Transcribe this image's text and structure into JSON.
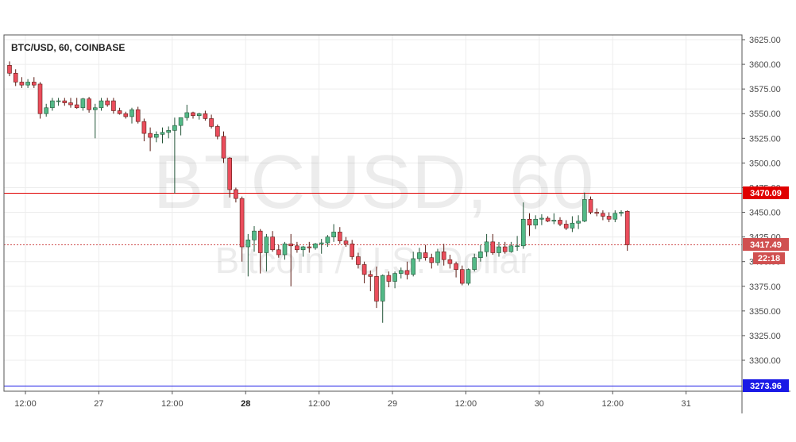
{
  "chart_data": {
    "type": "candlestick",
    "title": "BTC/USD, 60, COINBASE",
    "watermark": {
      "main": "BTCUSD, 60",
      "sub": "Bitcoin / U.S. Dollar"
    },
    "y_ticks": [
      3300,
      3325,
      3350,
      3375,
      3400,
      3425,
      3450,
      3475,
      3500,
      3525,
      3550,
      3575,
      3600,
      3625
    ],
    "y_tick_labels": [
      "3300.00",
      "3325.00",
      "3350.00",
      "3375.00",
      "3400.00",
      "3425.00",
      "3450.00",
      "3475.00",
      "3500.00",
      "3525.00",
      "3550.00",
      "3575.00",
      "3600.00",
      "3625.00"
    ],
    "ylim": [
      3270,
      3628
    ],
    "x_labels": [
      {
        "label": "12:00",
        "bar": 2.6,
        "bold": false
      },
      {
        "label": "27",
        "bar": 14.6,
        "bold": false
      },
      {
        "label": "12:00",
        "bar": 26.6,
        "bold": false
      },
      {
        "label": "28",
        "bar": 38.6,
        "bold": true
      },
      {
        "label": "12:00",
        "bar": 50.6,
        "bold": false
      },
      {
        "label": "29",
        "bar": 62.6,
        "bold": false
      },
      {
        "label": "12:00",
        "bar": 74.6,
        "bold": false
      },
      {
        "label": "30",
        "bar": 86.6,
        "bold": false
      },
      {
        "label": "12:00",
        "bar": 98.6,
        "bold": false
      },
      {
        "label": "31",
        "bar": 110.6,
        "bold": false
      }
    ],
    "bar_range": [
      0,
      119
    ],
    "colors": {
      "up": "#53b987",
      "down": "#eb4d5c",
      "up_border": "#225437",
      "down_border": "#5b1a13",
      "grid": "#ececec",
      "border": "#555555"
    },
    "horizontal_lines": [
      {
        "value": 3470.09,
        "label": "3470.09",
        "color": "#e00000",
        "style": "solid"
      },
      {
        "value": 3273.96,
        "label": "3273.96",
        "color": "#1a1ae6",
        "style": "solid"
      },
      {
        "value": 3417.49,
        "label": "3417.49",
        "color": "#d05050",
        "style": "dotted",
        "timer": "22:18"
      }
    ],
    "candles": [
      [
        3599,
        3603,
        3588,
        3591
      ],
      [
        3591,
        3595,
        3578,
        3582
      ],
      [
        3582,
        3587,
        3576,
        3579
      ],
      [
        3579,
        3585,
        3576,
        3582
      ],
      [
        3582,
        3587,
        3576,
        3579
      ],
      [
        3580,
        3582,
        3545,
        3550
      ],
      [
        3550,
        3560,
        3547,
        3556
      ],
      [
        3556,
        3566,
        3553,
        3563
      ],
      [
        3563,
        3566,
        3558,
        3563
      ],
      [
        3563,
        3566,
        3558,
        3561
      ],
      [
        3561,
        3566,
        3556,
        3559
      ],
      [
        3559,
        3566,
        3555,
        3556
      ],
      [
        3556,
        3566,
        3553,
        3565
      ],
      [
        3565,
        3567,
        3551,
        3554
      ],
      [
        3554,
        3560,
        3525,
        3556
      ],
      [
        3556,
        3566,
        3553,
        3563
      ],
      [
        3563,
        3566,
        3557,
        3559
      ],
      [
        3563,
        3566,
        3550,
        3553
      ],
      [
        3553,
        3556,
        3549,
        3550
      ],
      [
        3550,
        3552,
        3545,
        3547
      ],
      [
        3547,
        3556,
        3540,
        3554
      ],
      [
        3554,
        3557,
        3540,
        3542
      ],
      [
        3542,
        3545,
        3522,
        3530
      ],
      [
        3530,
        3536,
        3512,
        3526
      ],
      [
        3526,
        3532,
        3521,
        3529
      ],
      [
        3529,
        3536,
        3520,
        3531
      ],
      [
        3531,
        3537,
        3525,
        3533
      ],
      [
        3533,
        3546,
        3469,
        3538
      ],
      [
        3538,
        3544,
        3528,
        3546
      ],
      [
        3546,
        3559,
        3543,
        3551
      ],
      [
        3551,
        3552,
        3545,
        3548
      ],
      [
        3548,
        3551,
        3544,
        3550
      ],
      [
        3550,
        3553,
        3543,
        3545
      ],
      [
        3545,
        3549,
        3535,
        3537
      ],
      [
        3537,
        3539,
        3524,
        3527
      ],
      [
        3527,
        3532,
        3500,
        3505
      ],
      [
        3505,
        3506,
        3465,
        3473
      ],
      [
        3473,
        3475,
        3460,
        3464
      ],
      [
        3464,
        3466,
        3400,
        3415
      ],
      [
        3415,
        3428,
        3385,
        3422
      ],
      [
        3422,
        3436,
        3410,
        3431
      ],
      [
        3431,
        3433,
        3388,
        3409
      ],
      [
        3409,
        3428,
        3390,
        3425
      ],
      [
        3425,
        3431,
        3410,
        3412
      ],
      [
        3412,
        3417,
        3404,
        3407
      ],
      [
        3407,
        3420,
        3402,
        3418
      ],
      [
        3418,
        3428,
        3375,
        3416
      ],
      [
        3416,
        3420,
        3409,
        3412
      ],
      [
        3412,
        3416,
        3405,
        3415
      ],
      [
        3415,
        3420,
        3409,
        3414
      ],
      [
        3414,
        3419,
        3412,
        3418
      ],
      [
        3418,
        3423,
        3408,
        3419
      ],
      [
        3419,
        3427,
        3415,
        3425
      ],
      [
        3425,
        3438,
        3420,
        3430
      ],
      [
        3430,
        3435,
        3418,
        3421
      ],
      [
        3421,
        3425,
        3415,
        3418
      ],
      [
        3418,
        3422,
        3402,
        3405
      ],
      [
        3405,
        3409,
        3393,
        3397
      ],
      [
        3397,
        3400,
        3378,
        3387
      ],
      [
        3387,
        3391,
        3370,
        3385
      ],
      [
        3385,
        3395,
        3353,
        3360
      ],
      [
        3360,
        3387,
        3338,
        3386
      ],
      [
        3386,
        3390,
        3374,
        3380
      ],
      [
        3380,
        3390,
        3373,
        3388
      ],
      [
        3388,
        3394,
        3383,
        3391
      ],
      [
        3391,
        3400,
        3382,
        3387
      ],
      [
        3387,
        3410,
        3385,
        3403
      ],
      [
        3403,
        3414,
        3400,
        3409
      ],
      [
        3409,
        3417,
        3401,
        3404
      ],
      [
        3404,
        3408,
        3393,
        3399
      ],
      [
        3399,
        3413,
        3396,
        3410
      ],
      [
        3410,
        3418,
        3396,
        3402
      ],
      [
        3402,
        3407,
        3393,
        3398
      ],
      [
        3398,
        3400,
        3384,
        3392
      ],
      [
        3392,
        3396,
        3376,
        3378
      ],
      [
        3378,
        3393,
        3376,
        3392
      ],
      [
        3392,
        3408,
        3390,
        3404
      ],
      [
        3404,
        3417,
        3400,
        3410
      ],
      [
        3410,
        3428,
        3405,
        3420
      ],
      [
        3420,
        3428,
        3407,
        3409
      ],
      [
        3409,
        3420,
        3405,
        3415
      ],
      [
        3415,
        3420,
        3408,
        3410
      ],
      [
        3410,
        3420,
        3409,
        3416
      ],
      [
        3416,
        3426,
        3411,
        3416
      ],
      [
        3416,
        3460,
        3413,
        3443
      ],
      [
        3443,
        3449,
        3426,
        3437
      ],
      [
        3437,
        3447,
        3433,
        3443
      ],
      [
        3443,
        3448,
        3437,
        3444
      ],
      [
        3444,
        3446,
        3440,
        3441
      ],
      [
        3441,
        3449,
        3438,
        3442
      ],
      [
        3442,
        3445,
        3436,
        3438
      ],
      [
        3438,
        3442,
        3432,
        3434
      ],
      [
        3434,
        3446,
        3430,
        3439
      ],
      [
        3439,
        3447,
        3433,
        3441
      ],
      [
        3441,
        3470,
        3440,
        3463
      ],
      [
        3463,
        3466,
        3448,
        3450
      ],
      [
        3450,
        3454,
        3446,
        3449
      ],
      [
        3449,
        3452,
        3442,
        3446
      ],
      [
        3446,
        3450,
        3440,
        3443
      ],
      [
        3443,
        3452,
        3440,
        3449
      ],
      [
        3449,
        3452,
        3446,
        3450
      ],
      [
        3451,
        3452,
        3411,
        3417
      ]
    ]
  }
}
